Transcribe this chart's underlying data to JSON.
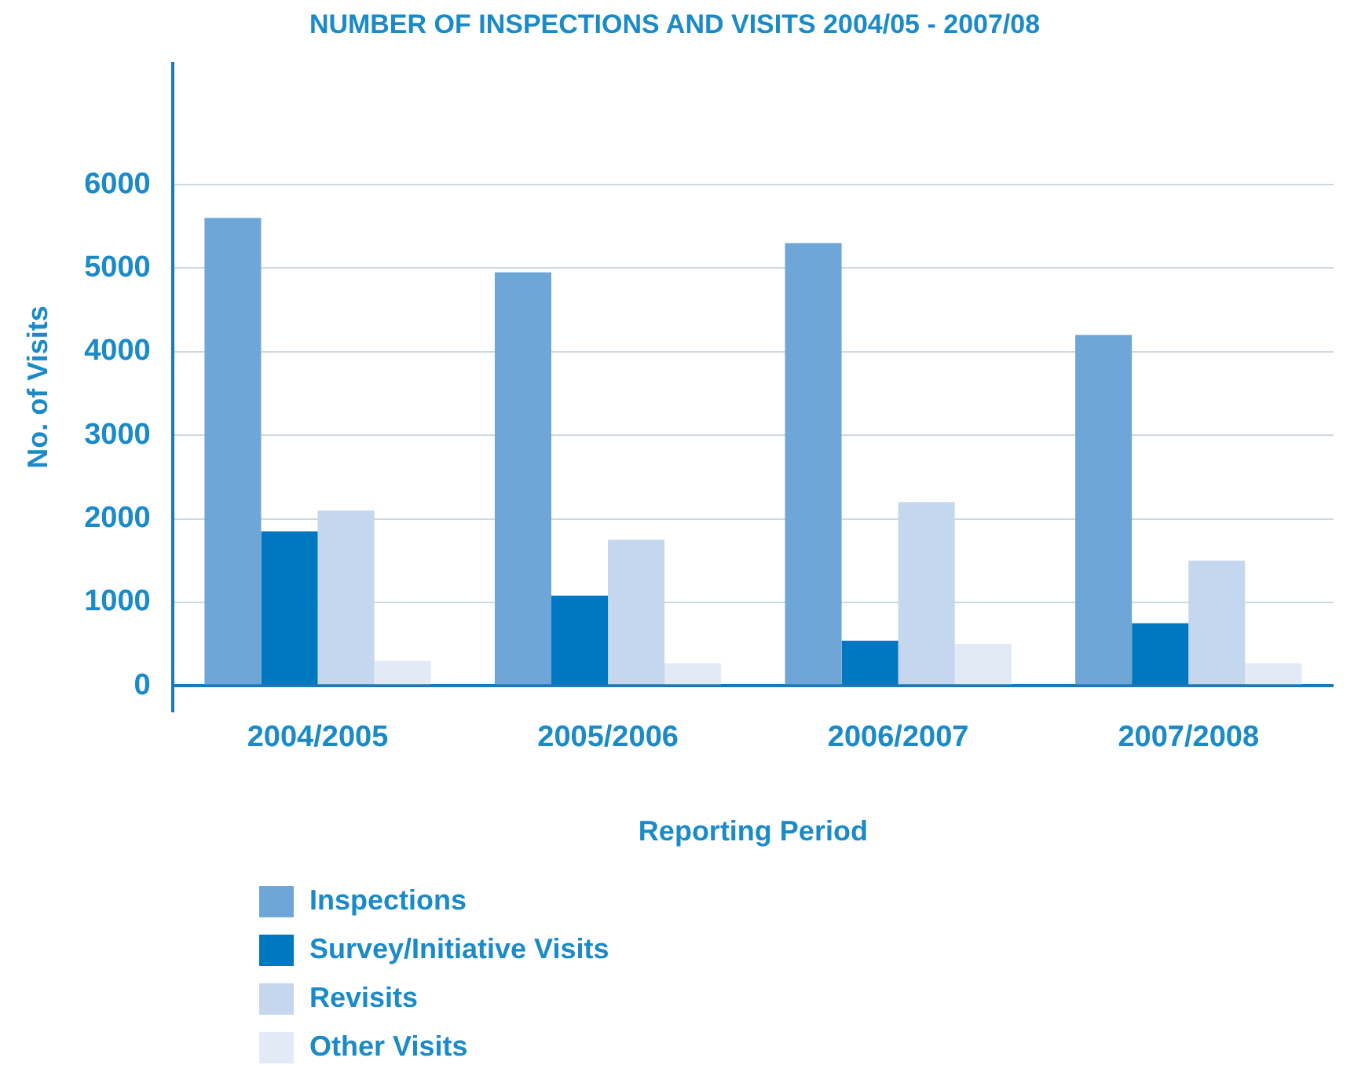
{
  "chart_data": {
    "type": "bar",
    "title": "NUMBER OF INSPECTIONS AND VISITS 2004/05 - 2007/08",
    "xlabel": "Reporting Period",
    "ylabel": "No. of Visits",
    "categories": [
      "2004/2005",
      "2005/2006",
      "2006/2007",
      "2007/2008"
    ],
    "series": [
      {
        "name": "Inspections",
        "color": "#6fa6d8",
        "values": [
          5600,
          4950,
          5300,
          4200
        ]
      },
      {
        "name": "Survey/Initiative Visits",
        "color": "#0077c1",
        "values": [
          1850,
          1080,
          540,
          750
        ]
      },
      {
        "name": "Revisits",
        "color": "#c5d7ee",
        "values": [
          2100,
          1750,
          2200,
          1500
        ]
      },
      {
        "name": "Other Visits",
        "color": "#e2eaf6",
        "values": [
          300,
          270,
          500,
          270
        ]
      }
    ],
    "ylim": [
      -300,
      7450
    ],
    "yticks": [
      0,
      1000,
      2000,
      3000,
      4000,
      5000,
      6000
    ],
    "grid": "y",
    "legend": "bottom"
  }
}
